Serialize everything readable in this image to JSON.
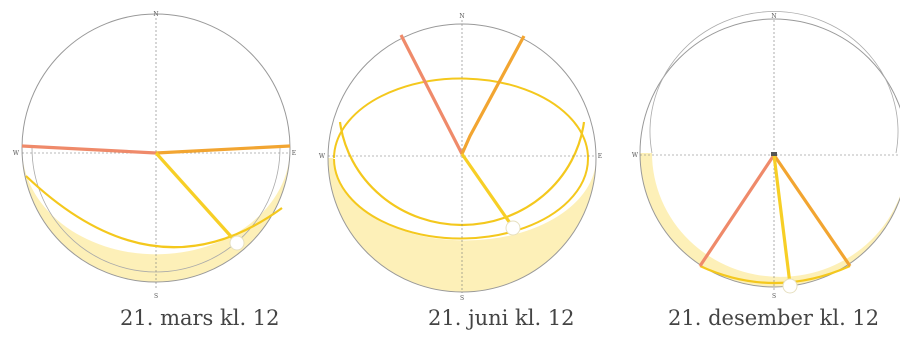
{
  "compass": {
    "n": "N",
    "s": "S",
    "e": "E",
    "w": "W"
  },
  "diagrams": [
    {
      "caption": "21. mars kl. 12"
    },
    {
      "caption": "21. juni kl. 12"
    },
    {
      "caption": "21. desember kl. 12"
    }
  ],
  "colors": {
    "band_fill": "#fdf0b8",
    "sun_path": "#f4c81d",
    "sun_ray": "#f7cf26",
    "sunrise_ray": "#f2a531",
    "sunset_ray": "#ef8a6a",
    "outline": "#999999",
    "axis": "#777777"
  }
}
